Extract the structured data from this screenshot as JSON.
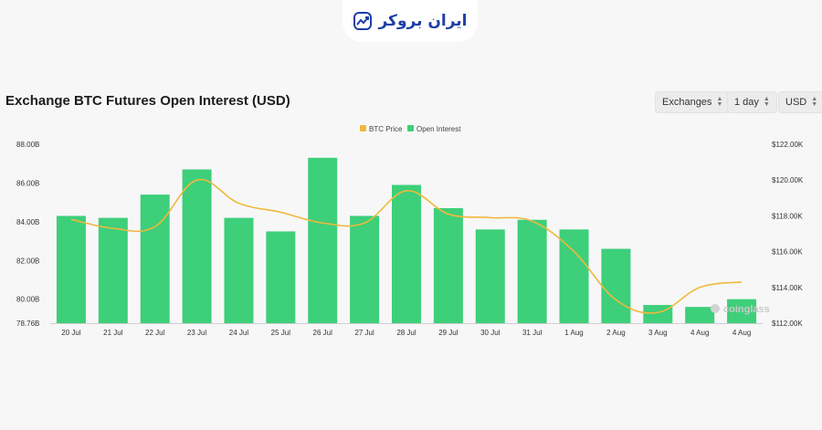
{
  "header": {
    "logo_text": "ایران بروکر"
  },
  "controls": {
    "exchanges": "Exchanges",
    "interval": "1 day",
    "currency": "USD"
  },
  "watermark": "coinglass",
  "colors": {
    "bar": "#3ecf7a",
    "line": "#f0b83c",
    "accent": "#1e3fa8"
  },
  "chart_data": {
    "type": "bar",
    "title": "Exchange BTC Futures Open Interest (USD)",
    "categories": [
      "20 Jul",
      "21 Jul",
      "22 Jul",
      "23 Jul",
      "24 Jul",
      "25 Jul",
      "26 Jul",
      "27 Jul",
      "28 Jul",
      "29 Jul",
      "30 Jul",
      "31 Jul",
      "1 Aug",
      "2 Aug",
      "3 Aug",
      "4 Aug",
      "4 Aug"
    ],
    "series": [
      {
        "name": "Open Interest",
        "type": "bar",
        "axis": "left",
        "values": [
          84.3,
          84.2,
          85.4,
          86.7,
          84.2,
          83.5,
          87.3,
          84.3,
          85.9,
          84.7,
          83.6,
          84.1,
          83.6,
          82.6,
          79.7,
          79.6,
          80.0
        ]
      },
      {
        "name": "BTC Price",
        "type": "line",
        "axis": "right",
        "values": [
          117.8,
          117.3,
          117.4,
          120.0,
          118.7,
          118.2,
          117.6,
          117.6,
          119.4,
          118.1,
          117.9,
          117.7,
          116.0,
          113.3,
          112.6,
          114.0,
          114.3
        ]
      }
    ],
    "y_left": {
      "ylim": [
        78.76,
        88.0
      ],
      "ticks": [
        "78.76B",
        "80.00B",
        "82.00B",
        "84.00B",
        "86.00B",
        "88.00B"
      ],
      "tick_values": [
        78.76,
        80,
        82,
        84,
        86,
        88
      ]
    },
    "y_right": {
      "ylim": [
        112.0,
        122.0
      ],
      "ticks": [
        "$112.00K",
        "$114.00K",
        "$116.00K",
        "$118.00K",
        "$120.00K",
        "$122.00K"
      ],
      "tick_values": [
        112,
        114,
        116,
        118,
        120,
        122
      ]
    },
    "legend_position": "top-center",
    "grid": false
  }
}
